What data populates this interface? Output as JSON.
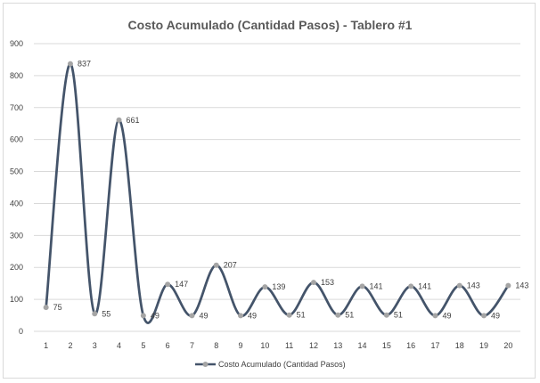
{
  "chart_data": {
    "type": "line",
    "title": "Costo Acumulado (Cantidad Pasos) - Tablero #1",
    "xlabel": "",
    "ylabel": "",
    "x": [
      1,
      2,
      3,
      4,
      5,
      6,
      7,
      8,
      9,
      10,
      11,
      12,
      13,
      14,
      15,
      16,
      17,
      18,
      19,
      20
    ],
    "ylim": [
      0,
      900
    ],
    "yticks": [
      0,
      100,
      200,
      300,
      400,
      500,
      600,
      700,
      800,
      900
    ],
    "smoothed": true,
    "grid": "horizontal",
    "legend": "bottom",
    "series": [
      {
        "name": "Costo Acumulado (Cantidad Pasos)",
        "values": [
          75,
          837,
          55,
          661,
          49,
          147,
          49,
          207,
          49,
          139,
          51,
          153,
          51,
          141,
          51,
          141,
          49,
          143,
          49,
          143
        ],
        "line_color": "#44546a",
        "marker_color": "#a5a5a5"
      }
    ],
    "gridline_color": "#d9d9d9"
  }
}
